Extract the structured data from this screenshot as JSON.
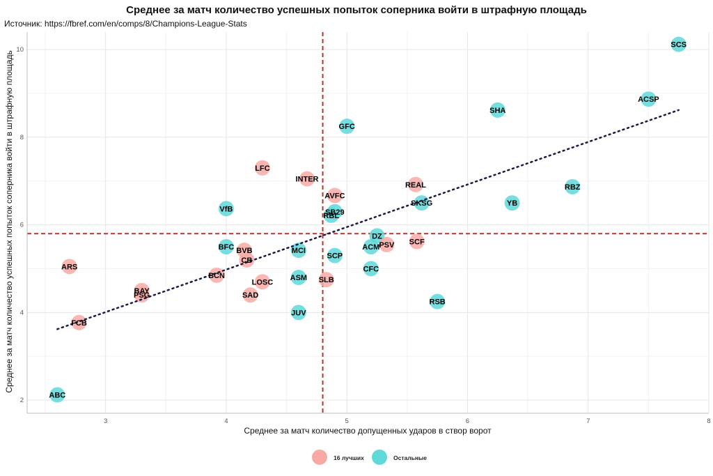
{
  "chart_data": {
    "type": "scatter",
    "title": "Среднее за матч количество успешных попыток соперника войти в штрафную площадь",
    "subtitle": "Источник: https://fbref.com/en/comps/8/Champions-League-Stats",
    "xlabel": "Среднее за матч количество допущенных ударов в створ ворот",
    "ylabel": "Среднее за матч количество успешных попыток соперника войти в штрафную площадь",
    "xlim": [
      2.35,
      8.0
    ],
    "ylim": [
      1.7,
      10.4
    ],
    "xticks": [
      3,
      4,
      5,
      6,
      7,
      8
    ],
    "yticks": [
      2,
      4,
      6,
      8,
      10
    ],
    "grid": true,
    "vline": 4.8,
    "hline": 5.8,
    "trendline": {
      "x1": 2.6,
      "y1": 3.62,
      "x2": 7.75,
      "y2": 8.62
    },
    "colors": {
      "top16": "#F8A9A4",
      "others": "#5ED8D8",
      "refline": "#C0302A",
      "trend": "#1b1a45"
    },
    "legend": {
      "position": "bottom",
      "entries": [
        {
          "key": "top16",
          "label": "16 лучших"
        },
        {
          "key": "others",
          "label": "Остальные"
        }
      ]
    },
    "points": [
      {
        "label": "SCS",
        "x": 7.75,
        "y": 10.12,
        "group": "others"
      },
      {
        "label": "ACSP",
        "x": 7.5,
        "y": 8.87,
        "group": "others"
      },
      {
        "label": "SHA",
        "x": 6.25,
        "y": 8.62,
        "group": "others"
      },
      {
        "label": "GFC",
        "x": 5.0,
        "y": 8.25,
        "group": "others"
      },
      {
        "label": "LFC",
        "x": 4.3,
        "y": 7.3,
        "group": "top16"
      },
      {
        "label": "INTER",
        "x": 4.67,
        "y": 7.05,
        "group": "top16"
      },
      {
        "label": "REAL",
        "x": 5.57,
        "y": 6.92,
        "group": "top16"
      },
      {
        "label": "RBZ",
        "x": 6.87,
        "y": 6.87,
        "group": "others"
      },
      {
        "label": "AVFC",
        "x": 4.9,
        "y": 6.67,
        "group": "top16"
      },
      {
        "label": "SKSG",
        "x": 5.62,
        "y": 6.5,
        "group": "others"
      },
      {
        "label": "YB",
        "x": 6.37,
        "y": 6.5,
        "group": "others"
      },
      {
        "label": "VfB",
        "x": 4.0,
        "y": 6.37,
        "group": "others"
      },
      {
        "label": "SB29",
        "x": 4.9,
        "y": 6.3,
        "group": "others"
      },
      {
        "label": "RBL",
        "x": 4.87,
        "y": 6.22,
        "group": "others"
      },
      {
        "label": "DZ",
        "x": 5.25,
        "y": 5.75,
        "group": "others"
      },
      {
        "label": "SCF",
        "x": 5.58,
        "y": 5.62,
        "group": "top16"
      },
      {
        "label": "PSV",
        "x": 5.33,
        "y": 5.55,
        "group": "top16"
      },
      {
        "label": "ACM",
        "x": 5.2,
        "y": 5.5,
        "group": "others"
      },
      {
        "label": "BFC",
        "x": 4.0,
        "y": 5.5,
        "group": "others"
      },
      {
        "label": "BVB",
        "x": 4.15,
        "y": 5.42,
        "group": "top16"
      },
      {
        "label": "MCI",
        "x": 4.6,
        "y": 5.42,
        "group": "others"
      },
      {
        "label": "SCP",
        "x": 4.9,
        "y": 5.3,
        "group": "others"
      },
      {
        "label": "CB",
        "x": 4.17,
        "y": 5.2,
        "group": "top16"
      },
      {
        "label": "ARS",
        "x": 2.7,
        "y": 5.05,
        "group": "top16"
      },
      {
        "label": "CFC",
        "x": 5.2,
        "y": 5.0,
        "group": "others"
      },
      {
        "label": "BCN",
        "x": 3.92,
        "y": 4.85,
        "group": "top16"
      },
      {
        "label": "ASM",
        "x": 4.6,
        "y": 4.8,
        "group": "others"
      },
      {
        "label": "SLB",
        "x": 4.83,
        "y": 4.75,
        "group": "top16"
      },
      {
        "label": "LOSC",
        "x": 4.3,
        "y": 4.7,
        "group": "top16"
      },
      {
        "label": "BAY",
        "x": 3.3,
        "y": 4.5,
        "group": "top16"
      },
      {
        "label": "PSG",
        "x": 3.3,
        "y": 4.4,
        "group": "top16"
      },
      {
        "label": "SAD",
        "x": 4.2,
        "y": 4.4,
        "group": "top16"
      },
      {
        "label": "RSB",
        "x": 5.75,
        "y": 4.25,
        "group": "others"
      },
      {
        "label": "JUV",
        "x": 4.6,
        "y": 4.0,
        "group": "others"
      },
      {
        "label": "FCB",
        "x": 2.78,
        "y": 3.77,
        "group": "top16"
      },
      {
        "label": "ABC",
        "x": 2.6,
        "y": 2.12,
        "group": "others"
      }
    ]
  }
}
